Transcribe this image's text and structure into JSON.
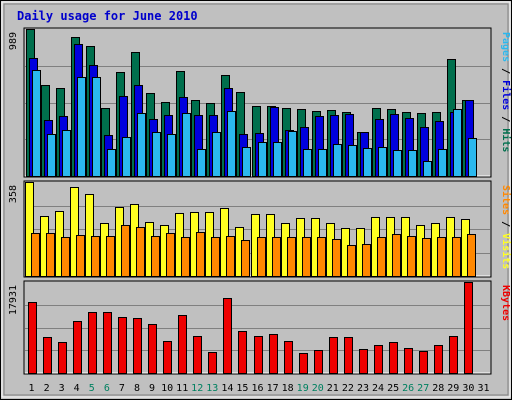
{
  "chart_data": {
    "type": "bar",
    "title": "Daily usage for June 2010",
    "x": [
      "1",
      "2",
      "3",
      "4",
      "5",
      "6",
      "7",
      "8",
      "9",
      "10",
      "11",
      "12",
      "13",
      "14",
      "15",
      "16",
      "17",
      "18",
      "19",
      "20",
      "21",
      "22",
      "23",
      "24",
      "25",
      "26",
      "27",
      "28",
      "29",
      "30",
      "31"
    ],
    "weekend_days": [
      "5",
      "6",
      "12",
      "13",
      "19",
      "20",
      "26",
      "27"
    ],
    "colors": {
      "hits": "#006f4d",
      "files": "#0000dd",
      "pages": "#2bb8ee",
      "visits": "#ffff22",
      "sites": "#ff8800",
      "kbytes": "#ee0000",
      "weekday_label": "#000000",
      "weekend_label": "#008060",
      "plot_bg": "#c0c0c0",
      "frame_bg": "#c0c0c0"
    },
    "panels": [
      {
        "name": "usage",
        "ymax_label": "989",
        "ymax": 989,
        "side_label": [
          {
            "text": "Pages",
            "color": "#2bb8ee"
          },
          {
            "text": " / ",
            "color": "#000000"
          },
          {
            "text": "Files",
            "color": "#0000dd"
          },
          {
            "text": " / ",
            "color": "#000000"
          },
          {
            "text": "Hits",
            "color": "#006f4d"
          }
        ],
        "series": [
          {
            "name": "Hits",
            "values": [
              989,
              610,
              595,
              936,
              877,
              456,
              698,
              834,
              559,
              496,
              707,
              509,
              490,
              681,
              565,
              473,
              470,
              456,
              453,
              440,
              443,
              431,
              298,
              459,
              454,
              432,
              426,
              430,
              787,
              511,
              0
            ],
            "offset": -2
          },
          {
            "name": "Files",
            "values": [
              794,
              375,
              407,
              890,
              748,
              278,
              538,
              610,
              385,
              412,
              529,
              410,
              412,
              592,
              280,
              286,
              467,
              311,
              328,
              406,
              409,
              419,
              293,
              383,
              417,
              389,
              330,
              368,
              430,
              513,
              0
            ],
            "offset": 1
          },
          {
            "name": "Pages",
            "values": [
              712,
              283,
              310,
              669,
              666,
              181,
              262,
              427,
              296,
              282,
              425,
              181,
              299,
              440,
              197,
              227,
              227,
              301,
              181,
              183,
              217,
              211,
              190,
              198,
              174,
              177,
              103,
              181,
              452,
              259,
              0
            ],
            "offset": 4
          }
        ]
      },
      {
        "name": "visits",
        "ymax_label": "358",
        "ymax": 358,
        "side_label": [
          {
            "text": "Sites",
            "color": "#ff8800"
          },
          {
            "text": " / ",
            "color": "#000000"
          },
          {
            "text": "Visits",
            "color": "#ffff22"
          }
        ],
        "series": [
          {
            "name": "Visits",
            "values": [
              358,
              227,
              249,
              338,
              311,
              201,
              262,
              275,
              206,
              196,
              239,
              245,
              243,
              259,
              188,
              236,
              237,
              200,
              220,
              222,
              202,
              183,
              182,
              225,
              226,
              226,
              193,
              201,
              226,
              218,
              0
            ],
            "offset": -3
          },
          {
            "name": "Sites",
            "values": [
              165,
              164,
              149,
              157,
              152,
              151,
              194,
              185,
              153,
              163,
              147,
              166,
              150,
              154,
              139,
              149,
              148,
              149,
              148,
              150,
              140,
              118,
              123,
              148,
              159,
              154,
              145,
              150,
              147,
              160,
              0
            ],
            "offset": 3
          }
        ]
      },
      {
        "name": "kbytes",
        "ymax_label": "17931",
        "ymax": 17931,
        "side_label": [
          {
            "text": "KBytes",
            "color": "#ee0000"
          }
        ],
        "series": [
          {
            "name": "KBytes",
            "values": [
              14053,
              7119,
              6206,
              10283,
              12086,
              12086,
              11023,
              10788,
              9722,
              6402,
              11339,
              7221,
              4152,
              14849,
              8250,
              7203,
              7625,
              6297,
              4001,
              4535,
              6999,
              6999,
              4633,
              5572,
              6072,
              4870,
              4365,
              5572,
              7211,
              17931,
              0
            ],
            "offset": 0
          }
        ]
      }
    ]
  }
}
